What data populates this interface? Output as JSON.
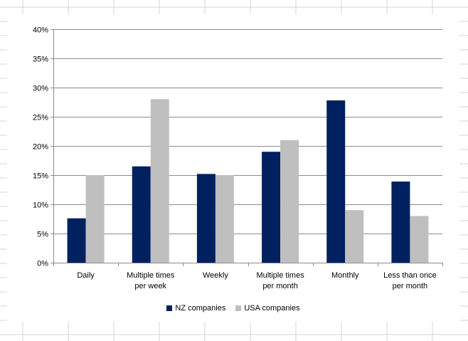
{
  "chart_data": {
    "type": "bar",
    "categories": [
      [
        "Daily"
      ],
      [
        "Multiple times",
        "per week"
      ],
      [
        "Weekly"
      ],
      [
        "Multiple times",
        "per month"
      ],
      [
        "Monthly"
      ],
      [
        "Less than once",
        "per month"
      ]
    ],
    "series": [
      {
        "name": "NZ companies",
        "color": "#002060",
        "values": [
          7.6,
          16.5,
          15.2,
          19.0,
          27.8,
          13.9
        ]
      },
      {
        "name": "USA companies",
        "color": "#BFBFBF",
        "values": [
          15.0,
          28.0,
          15.0,
          21.0,
          9.0,
          8.0
        ]
      }
    ],
    "yticks": [
      "0%",
      "5%",
      "10%",
      "15%",
      "20%",
      "25%",
      "30%",
      "35%",
      "40%"
    ],
    "ylim": [
      0,
      40
    ],
    "grid": true,
    "legend_position": "bottom",
    "title": "",
    "xlabel": "",
    "ylabel": ""
  }
}
